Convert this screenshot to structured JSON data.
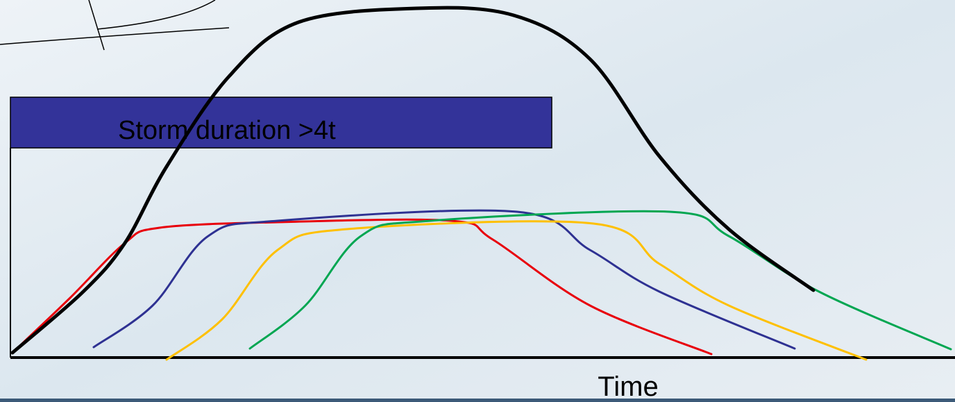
{
  "box": {
    "text": "Storm duration >4t"
  },
  "axis": {
    "x_label": "Time"
  }
}
